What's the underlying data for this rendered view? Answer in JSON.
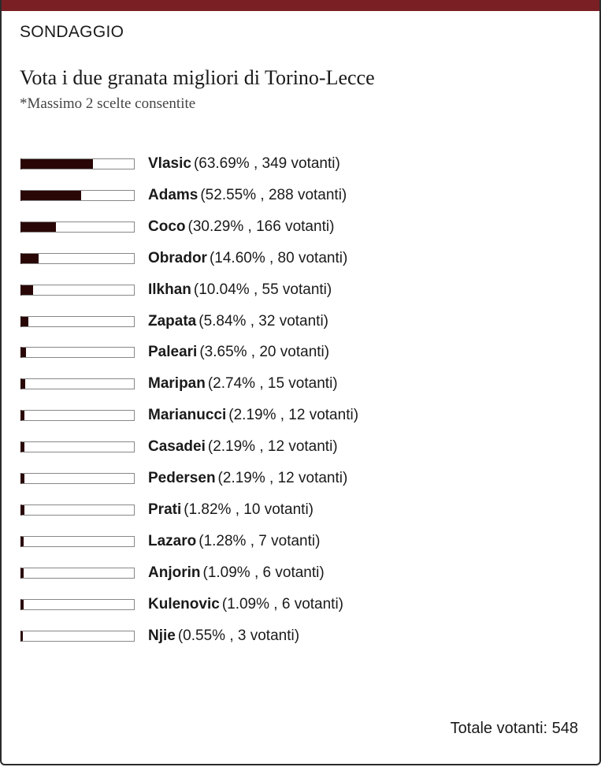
{
  "header": {
    "label": "SONDAGGIO",
    "title": "Vota i due granata migliori di Torino-Lecce",
    "subtitle": "*Massimo 2 scelte consentite"
  },
  "options": [
    {
      "name": "Vlasic",
      "percent": 63.69,
      "detail": "(63.69% , 349 votanti)"
    },
    {
      "name": "Adams",
      "percent": 52.55,
      "detail": "(52.55% , 288 votanti)"
    },
    {
      "name": "Coco",
      "percent": 30.29,
      "detail": "(30.29% , 166 votanti)"
    },
    {
      "name": "Obrador",
      "percent": 14.6,
      "detail": "(14.60% , 80 votanti)"
    },
    {
      "name": "Ilkhan",
      "percent": 10.04,
      "detail": "(10.04% , 55 votanti)"
    },
    {
      "name": "Zapata",
      "percent": 5.84,
      "detail": "(5.84% , 32 votanti)"
    },
    {
      "name": "Paleari",
      "percent": 3.65,
      "detail": "(3.65% , 20 votanti)"
    },
    {
      "name": "Maripan",
      "percent": 2.74,
      "detail": "(2.74% , 15 votanti)"
    },
    {
      "name": "Marianucci",
      "percent": 2.19,
      "detail": "(2.19% , 12 votanti)"
    },
    {
      "name": "Casadei",
      "percent": 2.19,
      "detail": "(2.19% , 12 votanti)"
    },
    {
      "name": "Pedersen",
      "percent": 2.19,
      "detail": "(2.19% , 12 votanti)"
    },
    {
      "name": "Prati",
      "percent": 1.82,
      "detail": "(1.82% , 10 votanti)"
    },
    {
      "name": "Lazaro",
      "percent": 1.28,
      "detail": "(1.28% , 7 votanti)"
    },
    {
      "name": "Anjorin",
      "percent": 1.09,
      "detail": "(1.09% , 6 votanti)"
    },
    {
      "name": "Kulenovic",
      "percent": 1.09,
      "detail": "(1.09% , 6 votanti)"
    },
    {
      "name": "Njie",
      "percent": 0.55,
      "detail": "(0.55% , 3 votanti)"
    }
  ],
  "footer": {
    "total": "Totale votanti: 548"
  }
}
